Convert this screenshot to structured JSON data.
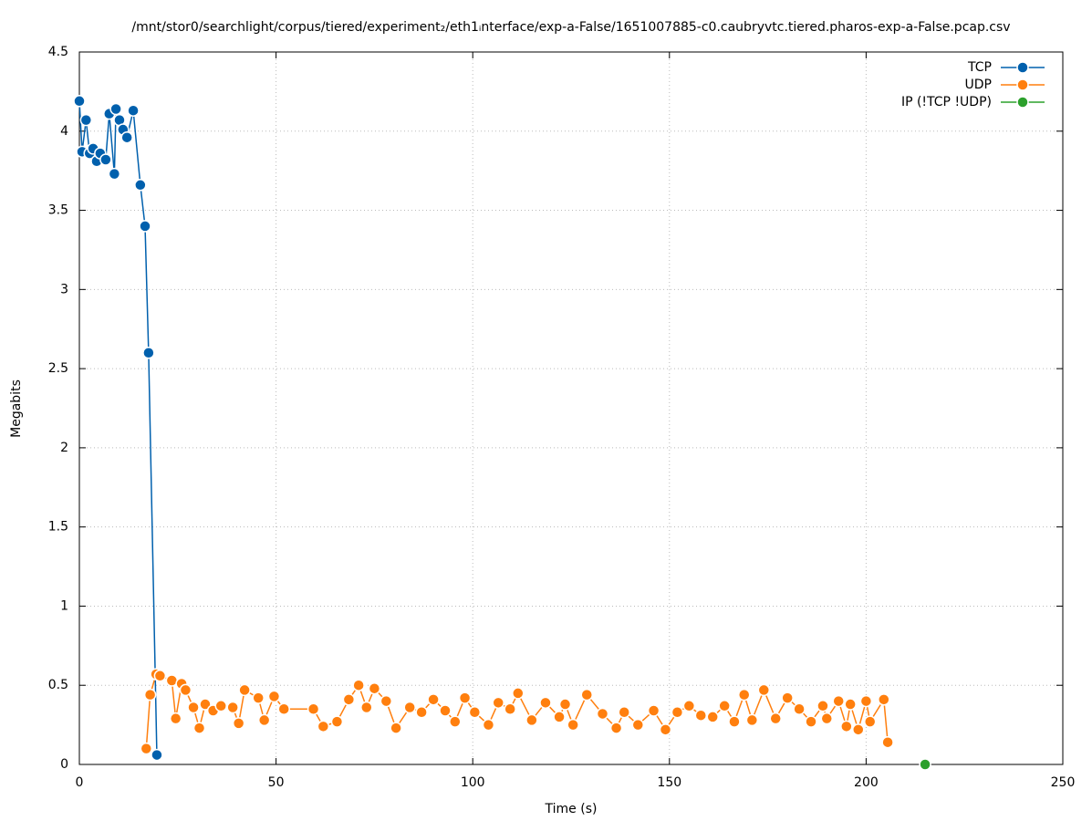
{
  "chart_data": {
    "type": "line",
    "title": "/mnt/stor0/searchlight/corpus/tiered/experiment₂/eth1ᵢnterface/exp-a-False/1651007885-c0.caubryvtc.tiered.pharos-exp-a-False.pcap.csv",
    "x_label": "Time (s)",
    "y_label": "Megabits",
    "xlim": [
      0,
      250
    ],
    "xticks": [
      0,
      50,
      100,
      150,
      200,
      250
    ],
    "ylim": [
      0,
      4.5
    ],
    "yticks": [
      0,
      0.5,
      1,
      1.5,
      2,
      2.5,
      3,
      3.5,
      4,
      4.5
    ],
    "grid": true,
    "legend": "top-right",
    "series": [
      {
        "name": "TCP",
        "color": "#0060ad",
        "x": [
          0,
          0.7,
          1.7,
          2.6,
          3.5,
          4.4,
          5.3,
          6.7,
          7.6,
          8.9,
          9.3,
          10.2,
          11.1,
          12.1,
          13.7,
          15.5,
          16.7,
          17.6,
          19.7
        ],
        "values": [
          4.19,
          3.87,
          4.07,
          3.86,
          3.89,
          3.81,
          3.86,
          3.82,
          4.11,
          3.73,
          4.14,
          4.07,
          4.01,
          3.96,
          4.13,
          3.66,
          3.4,
          2.6,
          0.06
        ]
      },
      {
        "name": "UDP",
        "color": "#ff7f0e",
        "x": [
          17,
          18,
          19.5,
          20.5,
          23.5,
          24.5,
          26,
          27,
          29,
          30.5,
          32,
          34,
          36,
          39,
          40.5,
          42,
          45.5,
          47,
          49.5,
          52,
          59.5,
          62,
          65.5,
          68.5,
          71,
          73,
          75,
          78,
          80.5,
          84,
          87,
          90,
          93,
          95.5,
          98,
          100.5,
          104,
          106.5,
          109.5,
          111.5,
          115,
          118.5,
          122,
          123.5,
          125.5,
          129,
          133,
          136.5,
          138.5,
          142,
          146,
          149,
          152,
          155,
          158,
          161,
          164,
          166.5,
          169,
          171,
          174,
          177,
          180,
          183,
          186,
          189,
          190,
          193,
          195,
          196,
          198,
          200,
          201,
          204.5,
          205.5
        ],
        "values": [
          0.1,
          0.44,
          0.57,
          0.56,
          0.53,
          0.29,
          0.51,
          0.47,
          0.36,
          0.23,
          0.38,
          0.34,
          0.37,
          0.36,
          0.26,
          0.47,
          0.42,
          0.28,
          0.43,
          0.35,
          0.35,
          0.24,
          0.27,
          0.41,
          0.5,
          0.36,
          0.48,
          0.4,
          0.23,
          0.36,
          0.33,
          0.41,
          0.34,
          0.27,
          0.42,
          0.33,
          0.25,
          0.39,
          0.35,
          0.45,
          0.28,
          0.39,
          0.3,
          0.38,
          0.25,
          0.44,
          0.32,
          0.23,
          0.33,
          0.25,
          0.34,
          0.22,
          0.33,
          0.37,
          0.31,
          0.3,
          0.37,
          0.27,
          0.44,
          0.28,
          0.47,
          0.29,
          0.42,
          0.35,
          0.27,
          0.37,
          0.29,
          0.4,
          0.24,
          0.38,
          0.22,
          0.4,
          0.27,
          0.41,
          0.14
        ]
      },
      {
        "name": "IP (!TCP  !UDP)",
        "color": "#2ca02c",
        "x": [
          215
        ],
        "values": [
          0
        ]
      }
    ]
  }
}
